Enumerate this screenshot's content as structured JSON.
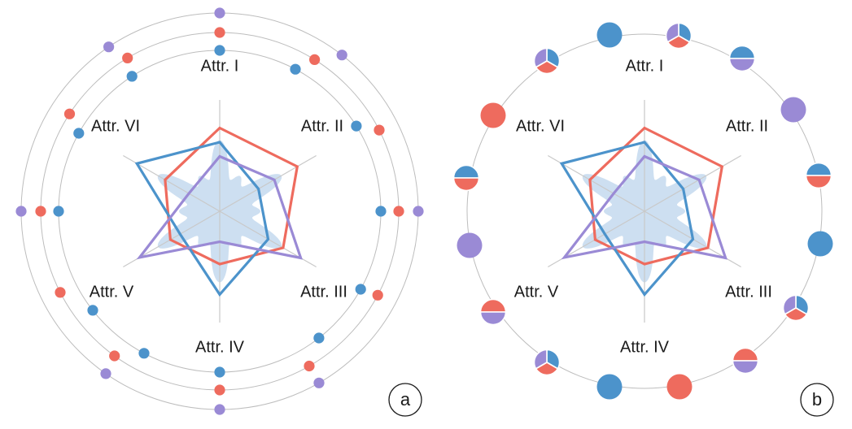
{
  "axes": [
    "Attr. I",
    "Attr. II",
    "Attr. III",
    "Attr. IV",
    "Attr. V",
    "Attr. VI"
  ],
  "panel_labels": [
    "a",
    "b"
  ],
  "colors": {
    "red": "#ee6b5e",
    "blue": "#4c93cb",
    "purple": "#9a8ad5",
    "density": "#bcd4ec",
    "grid": "#bdbdbd"
  },
  "chart_data": {
    "type": "radar",
    "rmax": 1.0,
    "series": [
      {
        "color": "red",
        "values": [
          0.82,
          0.88,
          0.72,
          0.52,
          0.56,
          0.62
        ]
      },
      {
        "color": "blue",
        "values": [
          0.68,
          0.44,
          0.55,
          0.82,
          0.45,
          0.94
        ]
      },
      {
        "color": "purple",
        "values": [
          0.54,
          0.62,
          0.92,
          0.3,
          0.91,
          0.35
        ]
      }
    ]
  }
}
